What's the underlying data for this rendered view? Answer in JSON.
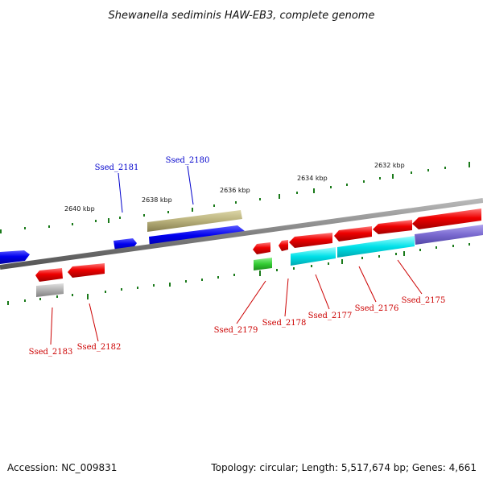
{
  "title": "Shewanella sediminis HAW-EB3, complete genome",
  "footer": {
    "accession": "Accession: NC_009831",
    "topology": "Topology: circular; Length: 5,517,674 bp; Genes: 4,661"
  },
  "scale_labels": [
    "2640 kbp",
    "2638 kbp",
    "2636 kbp",
    "2634 kbp",
    "2632 kbp"
  ],
  "gene_labels": [
    {
      "text": "Ssed_2181",
      "color": "#0000cc"
    },
    {
      "text": "Ssed_2180",
      "color": "#0000cc"
    },
    {
      "text": "Ssed_2183",
      "color": "#cc0000"
    },
    {
      "text": "Ssed_2182",
      "color": "#cc0000"
    },
    {
      "text": "Ssed_2179",
      "color": "#cc0000"
    },
    {
      "text": "Ssed_2178",
      "color": "#cc0000"
    },
    {
      "text": "Ssed_2177",
      "color": "#cc0000"
    },
    {
      "text": "Ssed_2176",
      "color": "#cc0000"
    },
    {
      "text": "Ssed_2175",
      "color": "#cc0000"
    }
  ],
  "colors": {
    "backbone": "#808080",
    "forward_gene": "#0000ee",
    "reverse_gene": "#ee0000",
    "tick": "#1a7a1a",
    "rna_gene": "#b8b07a",
    "highlight_cyan": "#00e0e8",
    "highlight_purple": "#7a6ad0",
    "green_gene": "#33cc33",
    "gray_gene": "#b0b0b0"
  }
}
